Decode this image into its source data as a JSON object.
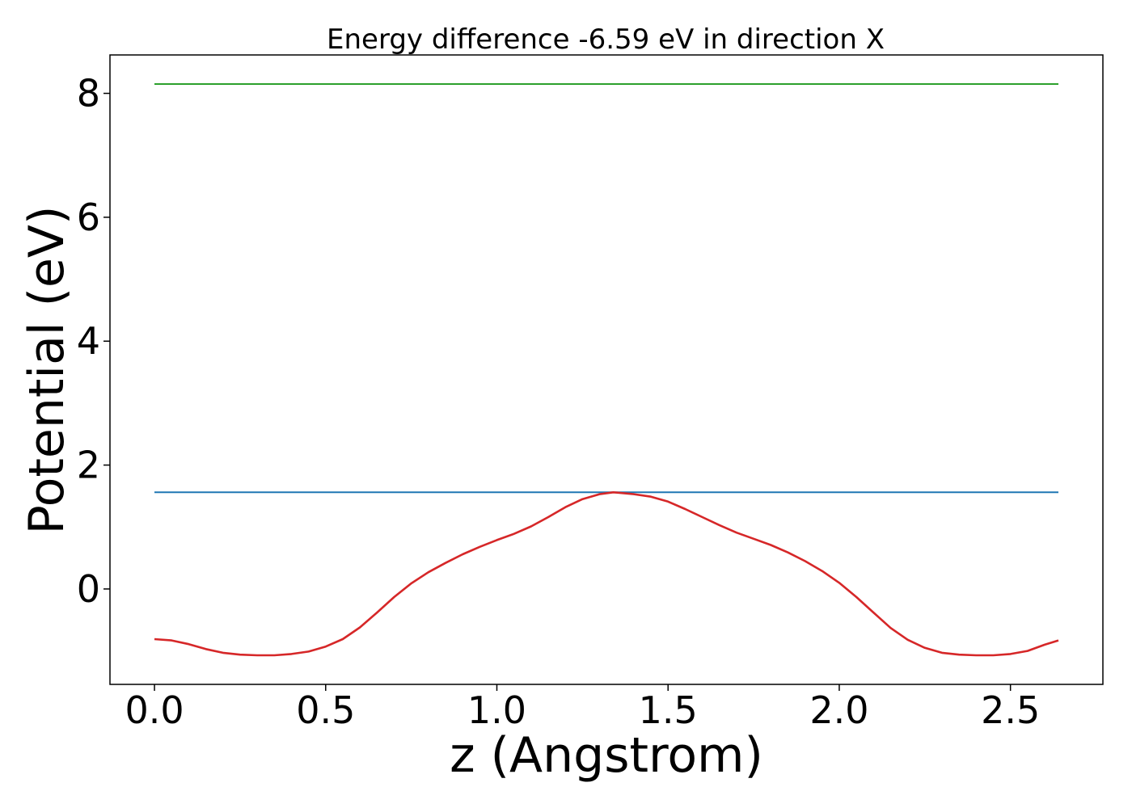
{
  "chart_data": {
    "type": "line",
    "title": "Energy difference -6.59 eV in direction X",
    "xlabel": "z (Angstrom)",
    "ylabel": "Potential (eV)",
    "xlim": [
      -0.13,
      2.77
    ],
    "ylim": [
      -1.54,
      8.62
    ],
    "xticks": [
      0.0,
      0.5,
      1.0,
      1.5,
      2.0,
      2.5
    ],
    "xtick_labels": [
      "0.0",
      "0.5",
      "1.0",
      "1.5",
      "2.0",
      "2.5"
    ],
    "yticks": [
      0,
      2,
      4,
      6,
      8
    ],
    "ytick_labels": [
      "0",
      "2",
      "4",
      "6",
      "8"
    ],
    "grid": false,
    "legend": "none",
    "series": [
      {
        "color": "#2ca02c",
        "x": [
          0.0,
          2.64
        ],
        "y": [
          8.15,
          8.15
        ]
      },
      {
        "color": "#1f77b4",
        "x": [
          0.0,
          2.64
        ],
        "y": [
          1.56,
          1.56
        ]
      },
      {
        "color": "#d62728",
        "x": [
          0.0,
          0.05,
          0.1,
          0.15,
          0.2,
          0.25,
          0.3,
          0.35,
          0.4,
          0.45,
          0.5,
          0.55,
          0.6,
          0.65,
          0.7,
          0.75,
          0.8,
          0.85,
          0.9,
          0.95,
          1.0,
          1.05,
          1.1,
          1.15,
          1.2,
          1.25,
          1.3,
          1.34,
          1.4,
          1.45,
          1.5,
          1.55,
          1.6,
          1.65,
          1.7,
          1.75,
          1.8,
          1.85,
          1.9,
          1.95,
          2.0,
          2.05,
          2.1,
          2.15,
          2.2,
          2.25,
          2.3,
          2.35,
          2.4,
          2.45,
          2.5,
          2.55,
          2.6,
          2.64
        ],
        "y": [
          -0.81,
          -0.83,
          -0.89,
          -0.97,
          -1.03,
          -1.06,
          -1.07,
          -1.07,
          -1.05,
          -1.01,
          -0.93,
          -0.81,
          -0.62,
          -0.38,
          -0.13,
          0.09,
          0.27,
          0.42,
          0.56,
          0.68,
          0.79,
          0.89,
          1.01,
          1.16,
          1.32,
          1.45,
          1.53,
          1.56,
          1.53,
          1.49,
          1.41,
          1.29,
          1.16,
          1.03,
          0.91,
          0.81,
          0.71,
          0.59,
          0.45,
          0.29,
          0.1,
          -0.13,
          -0.38,
          -0.63,
          -0.82,
          -0.95,
          -1.03,
          -1.06,
          -1.07,
          -1.07,
          -1.05,
          -1.0,
          -0.9,
          -0.83
        ]
      }
    ]
  }
}
